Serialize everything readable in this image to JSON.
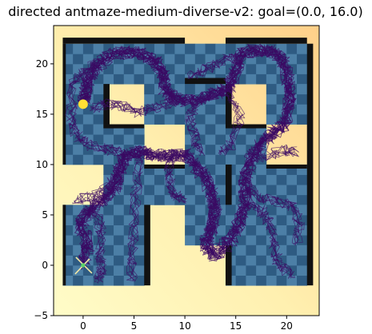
{
  "chart_data": {
    "type": "scatter",
    "title": "directed antmaze-medium-diverse-v2: goal=(0.0, 16.0)",
    "xlabel": "",
    "ylabel": "",
    "xlim": [
      -2.9,
      23.2
    ],
    "ylim": [
      -5,
      23.8
    ],
    "x_ticks": [
      0,
      5,
      10,
      15,
      20
    ],
    "y_ticks": [
      -5,
      0,
      5,
      10,
      15,
      20
    ],
    "grid": false,
    "legend": "none",
    "goal": {
      "x": 0.0,
      "y": 16.0,
      "color": "#FFE135"
    },
    "start": {
      "x": 0.0,
      "y": 0.0,
      "color": "#5CD668"
    },
    "colors": {
      "trajectory": "#3B0A63",
      "floor_light": "#4C7FA6",
      "floor_dark": "#2E5B82",
      "wall_shadow": "#111111",
      "background_low": "#FFFCC8",
      "background_high": "#FFD089"
    },
    "walls": [
      {
        "x0": -2,
        "y0": 22,
        "x1": 10,
        "y1": 22.6
      },
      {
        "x0": 14,
        "y0": 22,
        "x1": 22,
        "y1": 22.6
      },
      {
        "x0": -2,
        "y0": 10,
        "x1": -1.7,
        "y1": 22
      },
      {
        "x0": -2,
        "y0": -2,
        "x1": -1.7,
        "y1": 6
      },
      {
        "x0": 22,
        "y0": -2,
        "x1": 22.6,
        "y1": 22
      },
      {
        "x0": 10,
        "y0": 18,
        "x1": 14,
        "y1": 18.6
      },
      {
        "x0": 2,
        "y0": 18,
        "x1": 2.6,
        "y1": 14
      },
      {
        "x0": 2,
        "y0": 14,
        "x1": 6,
        "y1": 13.6
      },
      {
        "x0": 14,
        "y0": 18,
        "x1": 14.6,
        "y1": 14
      },
      {
        "x0": 14,
        "y0": 14,
        "x1": 18,
        "y1": 13.6
      },
      {
        "x0": 6,
        "y0": 10,
        "x1": 10,
        "y1": 9.6
      },
      {
        "x0": 14,
        "y0": 10,
        "x1": 14.6,
        "y1": 6
      },
      {
        "x0": 18,
        "y0": 10,
        "x1": 22,
        "y1": 9.6
      },
      {
        "x0": 6,
        "y0": 6,
        "x1": 6.6,
        "y1": -2
      },
      {
        "x0": 14,
        "y0": 2,
        "x1": 14.6,
        "y1": -2
      }
    ],
    "free_cells": [
      [
        -2,
        18
      ],
      [
        2,
        18
      ],
      [
        6,
        18
      ],
      [
        10,
        18
      ],
      [
        14,
        18
      ],
      [
        18,
        18
      ],
      [
        -2,
        14
      ],
      [
        6,
        14
      ],
      [
        10,
        14
      ],
      [
        18,
        14
      ],
      [
        -2,
        10
      ],
      [
        2,
        10
      ],
      [
        10,
        10
      ],
      [
        14,
        10
      ],
      [
        2,
        6
      ],
      [
        6,
        6
      ],
      [
        10,
        6
      ],
      [
        14,
        6
      ],
      [
        18,
        6
      ],
      [
        -2,
        2
      ],
      [
        2,
        2
      ],
      [
        10,
        2
      ],
      [
        14,
        2
      ],
      [
        18,
        2
      ],
      [
        -2,
        -2
      ],
      [
        2,
        -2
      ],
      [
        14,
        -2
      ],
      [
        18,
        -2
      ]
    ],
    "trajectory_corridor": [
      [
        0.0,
        0.0
      ],
      [
        0.5,
        2.0
      ],
      [
        -0.3,
        4.0
      ],
      [
        0.5,
        5.5
      ],
      [
        2.0,
        6.5
      ],
      [
        3.2,
        7.8
      ],
      [
        3.5,
        9.5
      ],
      [
        4.3,
        11.0
      ],
      [
        5.5,
        11.3
      ],
      [
        7.0,
        11.0
      ],
      [
        8.5,
        10.8
      ],
      [
        10.0,
        11.0
      ],
      [
        11.2,
        9.8
      ],
      [
        12.2,
        8.2
      ],
      [
        12.8,
        6.5
      ],
      [
        13.0,
        5.0
      ],
      [
        12.5,
        3.5
      ],
      [
        12.0,
        2.0
      ],
      [
        13.0,
        1.0
      ],
      [
        14.5,
        2.5
      ],
      [
        15.5,
        4.5
      ],
      [
        16.0,
        6.5
      ],
      [
        15.8,
        8.5
      ],
      [
        16.5,
        10.5
      ],
      [
        17.5,
        12.0
      ],
      [
        18.5,
        13.0
      ],
      [
        19.8,
        14.0
      ],
      [
        20.3,
        16.0
      ],
      [
        20.2,
        18.0
      ],
      [
        19.8,
        20.0
      ],
      [
        18.8,
        21.2
      ],
      [
        17.0,
        21.4
      ],
      [
        15.5,
        21.0
      ],
      [
        15.0,
        19.0
      ],
      [
        14.2,
        17.5
      ],
      [
        12.8,
        17.0
      ],
      [
        11.0,
        16.2
      ],
      [
        9.2,
        16.5
      ],
      [
        8.0,
        17.5
      ],
      [
        7.8,
        19.3
      ],
      [
        6.8,
        20.5
      ],
      [
        5.0,
        21.2
      ],
      [
        3.0,
        21.0
      ],
      [
        1.5,
        20.0
      ],
      [
        0.5,
        18.5
      ],
      [
        0.2,
        17.0
      ],
      [
        0.0,
        16.0
      ]
    ],
    "trajectory_branches": [
      [
        [
          3.6,
          9.5
        ],
        [
          2.6,
          8.0
        ],
        [
          1.0,
          7.0
        ],
        [
          -0.8,
          6.3
        ]
      ],
      [
        [
          1.2,
          5.5
        ],
        [
          1.8,
          3.5
        ],
        [
          1.6,
          1.5
        ],
        [
          1.8,
          -0.5
        ],
        [
          1.5,
          -1.5
        ]
      ],
      [
        [
          5.5,
          11.3
        ],
        [
          5.2,
          7.5
        ],
        [
          5.0,
          4.0
        ],
        [
          4.8,
          1.0
        ],
        [
          4.8,
          -1.5
        ]
      ],
      [
        [
          8.5,
          10.8
        ],
        [
          8.5,
          8.5
        ],
        [
          8.8,
          7.0
        ],
        [
          10.0,
          6.5
        ]
      ],
      [
        [
          16.0,
          6.5
        ],
        [
          17.5,
          5.5
        ],
        [
          18.5,
          4.0
        ],
        [
          18.8,
          2.0
        ],
        [
          19.2,
          0.0
        ],
        [
          20.5,
          -1.0
        ]
      ],
      [
        [
          15.8,
          8.5
        ],
        [
          17.0,
          6.8
        ],
        [
          19.0,
          6.4
        ],
        [
          20.8,
          5.8
        ],
        [
          21.2,
          4.0
        ],
        [
          21.0,
          2.0
        ]
      ],
      [
        [
          16.5,
          10.5
        ],
        [
          18.5,
          11.0
        ],
        [
          20.0,
          11.5
        ],
        [
          21.0,
          11.2
        ]
      ],
      [
        [
          14.2,
          17.5
        ],
        [
          15.5,
          15.0
        ],
        [
          14.5,
          12.0
        ],
        [
          13.5,
          11.3
        ]
      ],
      [
        [
          11.0,
          16.2
        ],
        [
          10.5,
          14.5
        ],
        [
          11.0,
          12.5
        ],
        [
          11.5,
          11.2
        ]
      ],
      [
        [
          9.2,
          16.5
        ],
        [
          8.5,
          16.0
        ],
        [
          6.5,
          15.5
        ],
        [
          5.2,
          15.2
        ],
        [
          4.0,
          15.8
        ],
        [
          2.5,
          16.0
        ],
        [
          0.8,
          15.5
        ]
      ],
      [
        [
          15.5,
          21.0
        ],
        [
          13.5,
          20.2
        ],
        [
          12.0,
          19.5
        ],
        [
          10.5,
          18.8
        ]
      ],
      [
        [
          1.5,
          20.0
        ],
        [
          0.0,
          19.0
        ],
        [
          -1.0,
          18.0
        ],
        [
          -1.2,
          15.0
        ],
        [
          -0.8,
          13.0
        ],
        [
          0.5,
          12.0
        ],
        [
          2.5,
          11.5
        ],
        [
          4.3,
          11.0
        ]
      ]
    ]
  }
}
